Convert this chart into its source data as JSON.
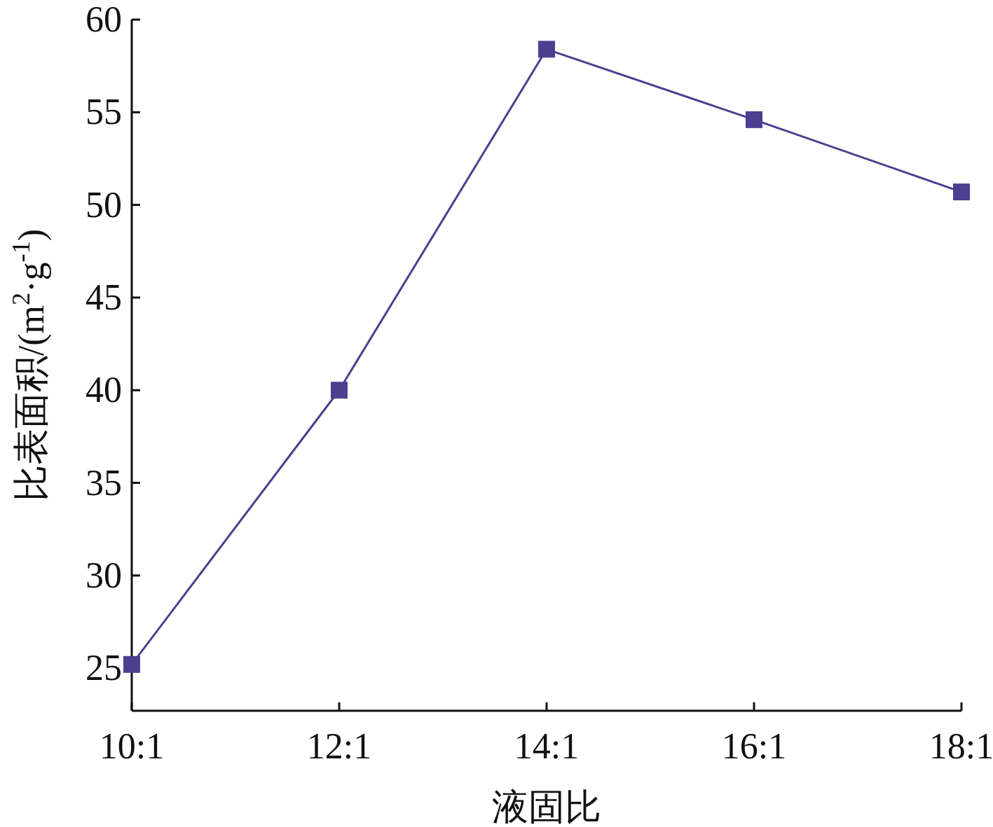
{
  "chart_data": {
    "type": "line",
    "xlabel": "液固比",
    "ylabel": "比表面积/(m$^{2}$·g$^{-1}$)",
    "categories": [
      "10:1",
      "12:1",
      "14:1",
      "16:1",
      "18:1"
    ],
    "series": [
      {
        "color": "#4b3f8f",
        "values": [
          25.2,
          40.0,
          58.4,
          54.6,
          50.7
        ]
      }
    ],
    "ylim": [
      22.7,
      60
    ],
    "yticks": [
      25,
      30,
      35,
      40,
      45,
      50,
      55,
      60
    ],
    "marker": "square",
    "line_style": "solid",
    "grid": false
  }
}
